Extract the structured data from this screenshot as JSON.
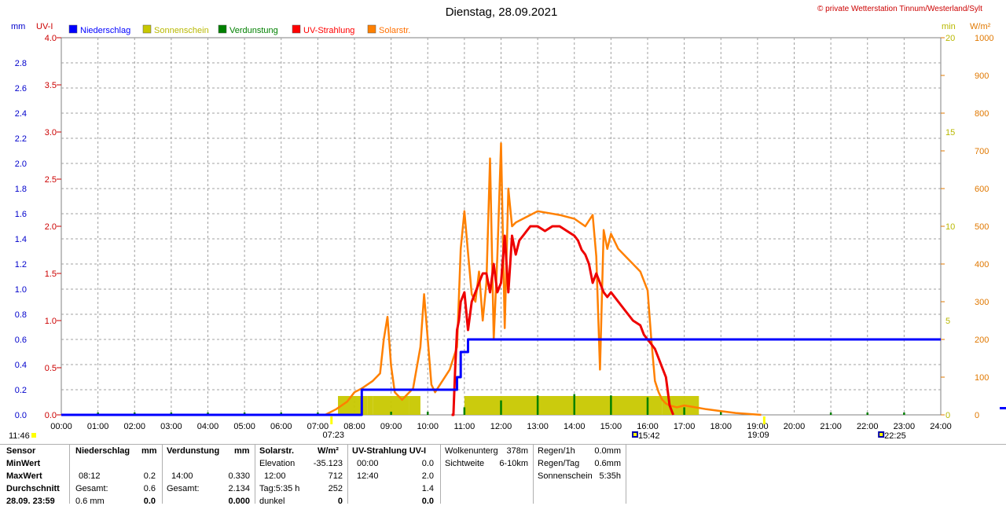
{
  "header": {
    "title": "Dienstag, 28.09.2021",
    "copyright": "© private Wetterstation Tinnum/Westerland/Sylt"
  },
  "axes": {
    "left1_unit": "mm",
    "left2_unit": "UV-I",
    "right1_unit": "min",
    "right2_unit": "W/m²",
    "mm_ticks": [
      "0.0",
      "0.2",
      "0.4",
      "0.6",
      "0.8",
      "1.0",
      "1.2",
      "1.4",
      "1.6",
      "1.8",
      "2.0",
      "2.2",
      "2.4",
      "2.6",
      "2.8"
    ],
    "uv_ticks": [
      "0.0",
      "0.5",
      "1.0",
      "1.5",
      "2.0",
      "2.5",
      "3.0",
      "3.5",
      "4.0"
    ],
    "min_ticks": [
      "0",
      "5",
      "10",
      "15",
      "20"
    ],
    "wm2_ticks": [
      "0",
      "100",
      "200",
      "300",
      "400",
      "500",
      "600",
      "700",
      "800",
      "900",
      "1000"
    ],
    "x_ticks": [
      "00:00",
      "01:00",
      "02:00",
      "03:00",
      "04:00",
      "05:00",
      "06:00",
      "07:00",
      "08:00",
      "09:00",
      "10:00",
      "11:00",
      "12:00",
      "13:00",
      "14:00",
      "15:00",
      "16:00",
      "17:00",
      "18:00",
      "19:00",
      "20:00",
      "21:00",
      "22:00",
      "23:00",
      "24:00"
    ],
    "colors": {
      "mm": "#0000cc",
      "uv": "#cc0000",
      "min": "#b8b800",
      "wm2": "#e07800"
    }
  },
  "legend": [
    {
      "label": "Niederschlag",
      "color": "#0000ff"
    },
    {
      "label": "Sonnenschein",
      "color": "#c8c800"
    },
    {
      "label": "Verdunstung",
      "color": "#008000"
    },
    {
      "label": "UV-Strahlung",
      "color": "#ff0000"
    },
    {
      "label": "Solarstr.",
      "color": "#ff8000"
    }
  ],
  "markers": {
    "moonrise_left": "11:46",
    "sunrise": "07:23",
    "moonset": "15:42",
    "sunset": "19:09",
    "moonrise_right": "22:25"
  },
  "chart_data": {
    "type": "line",
    "title": "Dienstag, 28.09.2021",
    "x_range_hours": [
      0,
      24
    ],
    "ylim_mm": [
      0,
      3.0
    ],
    "ylim_uv": [
      0,
      4.0
    ],
    "ylim_min": [
      0,
      20
    ],
    "ylim_wm2": [
      0,
      1000
    ],
    "grid": true,
    "series": [
      {
        "name": "Niederschlag",
        "axis": "mm",
        "color": "#0000ff",
        "x": [
          0,
          8.2,
          8.2,
          10.8,
          10.8,
          10.9,
          10.9,
          11.1,
          11.1,
          24
        ],
        "y": [
          0,
          0,
          0.2,
          0.2,
          0.3,
          0.3,
          0.5,
          0.5,
          0.6,
          0.6
        ]
      },
      {
        "name": "UV-Strahlung",
        "axis": "uv",
        "color": "#ee0000",
        "x": [
          10.65,
          10.7,
          10.75,
          10.8,
          10.85,
          10.9,
          11.0,
          11.05,
          11.1,
          11.2,
          11.3,
          11.4,
          11.5,
          11.6,
          11.7,
          11.8,
          11.9,
          12.0,
          12.1,
          12.2,
          12.3,
          12.4,
          12.5,
          12.6,
          12.7,
          12.8,
          13.0,
          13.2,
          13.4,
          13.6,
          13.8,
          14.0,
          14.1,
          14.2,
          14.3,
          14.4,
          14.5,
          14.6,
          14.7,
          14.8,
          14.9,
          15.0,
          15.2,
          15.4,
          15.6,
          15.8,
          15.9,
          16.0,
          16.1,
          16.2,
          16.3,
          16.4,
          16.5,
          16.6,
          16.7
        ],
        "y": [
          0,
          0,
          0.5,
          0.9,
          1.0,
          1.2,
          1.3,
          1.1,
          0.9,
          1.2,
          1.3,
          1.4,
          1.5,
          1.5,
          1.3,
          1.6,
          1.3,
          1.4,
          1.9,
          1.3,
          1.9,
          1.7,
          1.85,
          1.9,
          1.95,
          2.0,
          2.0,
          1.95,
          2.0,
          2.0,
          1.95,
          1.9,
          1.85,
          1.75,
          1.7,
          1.6,
          1.4,
          1.5,
          1.4,
          1.3,
          1.25,
          1.3,
          1.2,
          1.1,
          1.0,
          0.95,
          0.85,
          0.8,
          0.75,
          0.7,
          0.6,
          0.5,
          0.4,
          0.1,
          0
        ]
      },
      {
        "name": "Solarstr.",
        "axis": "wm2",
        "color": "#ff8000",
        "x": [
          7.2,
          7.5,
          7.8,
          8.0,
          8.2,
          8.5,
          8.7,
          8.8,
          8.9,
          9.0,
          9.1,
          9.3,
          9.6,
          9.8,
          9.9,
          10.0,
          10.1,
          10.2,
          10.4,
          10.6,
          10.8,
          10.9,
          11.0,
          11.1,
          11.2,
          11.3,
          11.4,
          11.5,
          11.6,
          11.7,
          11.8,
          11.9,
          12.0,
          12.1,
          12.2,
          12.3,
          12.4,
          12.6,
          12.8,
          13.0,
          13.3,
          13.6,
          14.0,
          14.3,
          14.5,
          14.6,
          14.7,
          14.8,
          14.9,
          15.0,
          15.2,
          15.4,
          15.6,
          15.8,
          16.0,
          16.1,
          16.2,
          16.3,
          16.4,
          16.5,
          16.6,
          16.8,
          17.0,
          17.3,
          17.6,
          18.0,
          18.4,
          18.8,
          19.1
        ],
        "y": [
          0,
          15,
          35,
          60,
          70,
          90,
          110,
          200,
          260,
          130,
          60,
          40,
          70,
          180,
          320,
          200,
          80,
          60,
          90,
          120,
          180,
          440,
          540,
          430,
          320,
          300,
          380,
          250,
          350,
          680,
          200,
          420,
          720,
          230,
          600,
          500,
          510,
          520,
          530,
          540,
          535,
          530,
          520,
          500,
          530,
          420,
          120,
          490,
          440,
          480,
          440,
          420,
          400,
          380,
          330,
          200,
          90,
          60,
          40,
          30,
          25,
          20,
          25,
          20,
          15,
          10,
          5,
          2,
          0
        ]
      },
      {
        "name": "Sonnenschein",
        "axis": "min",
        "color": "#c8c800",
        "x": [
          7.55,
          8.35,
          8.5,
          9.5,
          9.8,
          10.7,
          11.0,
          12.0,
          13.0,
          14.0,
          15.0,
          16.0,
          16.4,
          19.1
        ],
        "y": [
          1.0,
          1.0,
          1.0,
          1.0,
          0,
          0,
          1.0,
          1.0,
          1.0,
          1.0,
          1.0,
          1.0,
          1.0,
          0.3
        ]
      },
      {
        "name": "Verdunstung",
        "axis": "mm",
        "color": "#008000",
        "x": [
          1.0,
          2.0,
          3.0,
          4.0,
          5.0,
          6.0,
          7.0,
          9.0,
          10.0,
          11.0,
          12.0,
          13.0,
          14.0,
          15.0,
          16.0,
          17.0,
          18.0,
          21.0,
          22.0,
          23.0
        ],
        "y": [
          0.005,
          0.005,
          0.005,
          0.005,
          0.005,
          0.005,
          0.005,
          0.05,
          0.05,
          0.12,
          0.23,
          0.31,
          0.33,
          0.31,
          0.28,
          0.12,
          0.05,
          0.005,
          0.005,
          0.005
        ]
      }
    ]
  },
  "table": {
    "col1": {
      "h1": "Sensor",
      "r1": "MinWert",
      "r2": "MaxWert",
      "r3": "Durchschnitt",
      "r4": "28.09. 23:59"
    },
    "col2": {
      "h1": "Niederschlag",
      "h2": "mm",
      "r2a": "08:12",
      "r2b": "0.2",
      "r3a": "Gesamt:",
      "r3b": "0.6",
      "r4a": "0.6 mm",
      "r4b": "0.0"
    },
    "col3": {
      "h1": "Verdunstung",
      "h2": "mm",
      "r2a": "14:00",
      "r2b": "0.330",
      "r3a": "Gesamt:",
      "r3b": "2.134",
      "r4b": "0.000"
    },
    "col4": {
      "h1": "Solarstr.",
      "h2": "W/m²",
      "r1a": "Elevation",
      "r1b": "-35.123",
      "r2a": "12:00",
      "r2b": "712",
      "r3a": "Tag:5:35 h",
      "r3b": "252",
      "r4a": "dunkel",
      "r4b": "0"
    },
    "col5": {
      "h1": "UV-Strahlung UV-I",
      "r1a": "00:00",
      "r1b": "0.0",
      "r2a": "12:40",
      "r2b": "2.0",
      "r3b": "1.4",
      "r4b": "0.0"
    },
    "col6": {
      "r0a": "Wolkenunterg",
      "r0b": "378m",
      "r1a": "Sichtweite",
      "r1b": "6-10km"
    },
    "col7": {
      "r0a": "Regen/1h",
      "r0b": "0.0mm",
      "r1a": "Regen/Tag",
      "r1b": "0.6mm",
      "r2a": "Sonnenschein",
      "r2b": "5:35h"
    }
  }
}
